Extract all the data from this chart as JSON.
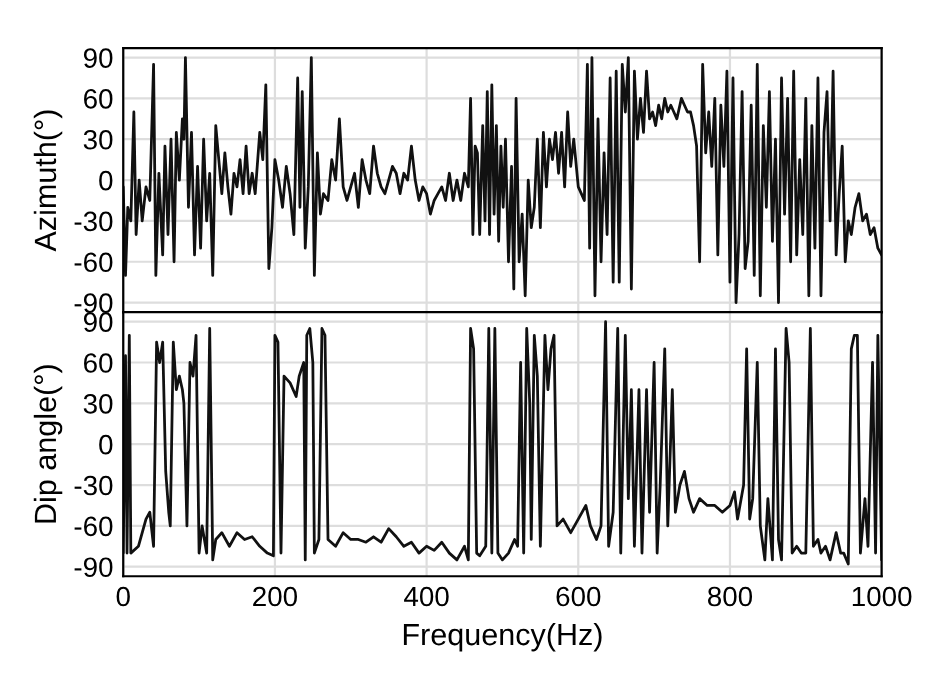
{
  "chart_data": [
    {
      "type": "line",
      "ylabel": "Azimuth(°)",
      "xlim": [
        0,
        1000
      ],
      "xticks": [
        0,
        200,
        400,
        600,
        800,
        1000
      ],
      "ylim": [
        -97,
        97
      ],
      "yticks": [
        {
          "value": 90,
          "label": "90"
        },
        {
          "value": 60,
          "label": "60"
        },
        {
          "value": 30,
          "label": "30"
        },
        {
          "value": 0,
          "label": "0"
        },
        {
          "value": -30,
          "label": "-30"
        },
        {
          "value": -60,
          "label": "-60"
        },
        {
          "value": -90,
          "label": "-90"
        }
      ],
      "grid": true,
      "tick_labels": "y",
      "series": [
        {
          "color": "#111111",
          "x": [
            0,
            3,
            6,
            10,
            14,
            17,
            21,
            25,
            30,
            35,
            40,
            43,
            47,
            52,
            55,
            59,
            63,
            67,
            70,
            74,
            78,
            80,
            82,
            86,
            90,
            94,
            98,
            102,
            106,
            110,
            114,
            118,
            122,
            126,
            130,
            134,
            138,
            142,
            146,
            150,
            154,
            158,
            162,
            166,
            170,
            174,
            180,
            184,
            188,
            192,
            196,
            200,
            205,
            210,
            215,
            220,
            225,
            230,
            233,
            236,
            240,
            244,
            248,
            252,
            256,
            260,
            264,
            270,
            275,
            280,
            285,
            290,
            295,
            300,
            305,
            310,
            315,
            320,
            325,
            330,
            335,
            340,
            345,
            350,
            355,
            360,
            365,
            370,
            375,
            380,
            385,
            390,
            395,
            400,
            405,
            410,
            415,
            420,
            425,
            430,
            435,
            440,
            445,
            450,
            455,
            458,
            461,
            464,
            467,
            470,
            474,
            477,
            480,
            483,
            486,
            489,
            492,
            495,
            498,
            501,
            504,
            508,
            512,
            515,
            518,
            522,
            526,
            530,
            534,
            538,
            542,
            546,
            550,
            554,
            558,
            562,
            566,
            570,
            574,
            578,
            582,
            586,
            590,
            594,
            600,
            604,
            608,
            612,
            615,
            618,
            622,
            626,
            630,
            634,
            638,
            642,
            646,
            650,
            654,
            658,
            662,
            666,
            670,
            674,
            678,
            682,
            686,
            690,
            694,
            698,
            702,
            706,
            710,
            714,
            718,
            722,
            726,
            730,
            736,
            740,
            744,
            748,
            752,
            756,
            760,
            764,
            768,
            772,
            776,
            780,
            784,
            788,
            792,
            796,
            800,
            804,
            808,
            812,
            816,
            820,
            824,
            828,
            832,
            836,
            840,
            844,
            848,
            852,
            856,
            860,
            864,
            868,
            872,
            876,
            880,
            884,
            888,
            892,
            896,
            900,
            904,
            908,
            912,
            916,
            920,
            924,
            928,
            932,
            936,
            940,
            944,
            948,
            952,
            956,
            960,
            965,
            970,
            975,
            980,
            985,
            990,
            995,
            1000
          ],
          "values": [
            -5,
            -70,
            -20,
            -30,
            50,
            -40,
            0,
            -30,
            -5,
            -15,
            85,
            -70,
            5,
            -55,
            25,
            -40,
            30,
            -60,
            35,
            0,
            45,
            30,
            90,
            -20,
            35,
            -55,
            10,
            -50,
            30,
            -30,
            5,
            -70,
            40,
            15,
            -10,
            20,
            -5,
            -25,
            5,
            -5,
            15,
            -10,
            25,
            -10,
            5,
            -10,
            35,
            15,
            70,
            -65,
            -35,
            15,
            0,
            -20,
            10,
            -10,
            -40,
            75,
            -20,
            65,
            -50,
            -5,
            90,
            -70,
            20,
            -25,
            -10,
            -15,
            15,
            0,
            45,
            -5,
            -15,
            -5,
            5,
            -20,
            15,
            0,
            -10,
            25,
            5,
            -5,
            -10,
            0,
            10,
            5,
            -10,
            5,
            0,
            25,
            0,
            -15,
            -5,
            -10,
            -25,
            -15,
            -10,
            -5,
            -15,
            5,
            -15,
            0,
            -15,
            5,
            -5,
            60,
            -40,
            25,
            20,
            -40,
            40,
            -30,
            65,
            -40,
            70,
            -25,
            40,
            -45,
            25,
            -20,
            30,
            -60,
            10,
            -80,
            60,
            -60,
            -25,
            -85,
            0,
            -35,
            -20,
            30,
            -35,
            35,
            -5,
            30,
            15,
            35,
            5,
            35,
            -5,
            50,
            10,
            30,
            -5,
            -10,
            -15,
            85,
            -50,
            90,
            -85,
            45,
            -60,
            20,
            -40,
            75,
            -75,
            80,
            -75,
            85,
            50,
            90,
            -80,
            80,
            30,
            60,
            35,
            80,
            45,
            50,
            40,
            55,
            45,
            60,
            50,
            55,
            50,
            45,
            60,
            55,
            50,
            50,
            40,
            25,
            -60,
            85,
            20,
            50,
            10,
            60,
            -55,
            55,
            10,
            80,
            -75,
            75,
            -90,
            -40,
            65,
            -65,
            -45,
            55,
            -70,
            85,
            -85,
            40,
            -20,
            65,
            -45,
            30,
            -90,
            75,
            -25,
            60,
            -60,
            80,
            -55,
            15,
            -40,
            60,
            -85,
            40,
            -50,
            75,
            -85,
            35,
            65,
            -30,
            80,
            -55,
            -10,
            25,
            -60,
            -30,
            -40,
            -20,
            -10,
            -30,
            -25,
            -40,
            -35,
            -50,
            -55
          ]
        }
      ]
    },
    {
      "type": "line",
      "ylabel": "Dip angle(°)",
      "xlabel": "Frequency(Hz)",
      "xlim": [
        0,
        1000
      ],
      "xticks": [
        0,
        200,
        400,
        600,
        800,
        1000
      ],
      "ylim": [
        -97,
        97
      ],
      "yticks": [
        {
          "value": 90,
          "label": "90"
        },
        {
          "value": 60,
          "label": "60"
        },
        {
          "value": 30,
          "label": "30"
        },
        {
          "value": 0,
          "label": "0"
        },
        {
          "value": -30,
          "label": "-30"
        },
        {
          "value": -60,
          "label": "-60"
        },
        {
          "value": -90,
          "label": "-90"
        }
      ],
      "grid": true,
      "series": [
        {
          "color": "#111111",
          "x": [
            0,
            3,
            5,
            8,
            10,
            20,
            30,
            35,
            40,
            44,
            48,
            52,
            56,
            60,
            62,
            66,
            70,
            74,
            78,
            80,
            84,
            88,
            92,
            96,
            100,
            104,
            110,
            114,
            118,
            122,
            130,
            140,
            150,
            160,
            170,
            180,
            190,
            198,
            200,
            204,
            208,
            212,
            220,
            228,
            232,
            238,
            240,
            242,
            246,
            250,
            252,
            258,
            262,
            266,
            270,
            280,
            290,
            300,
            310,
            320,
            330,
            340,
            350,
            360,
            370,
            380,
            390,
            400,
            410,
            420,
            430,
            440,
            450,
            455,
            458,
            462,
            466,
            470,
            478,
            482,
            486,
            490,
            494,
            500,
            508,
            516,
            520,
            524,
            528,
            532,
            536,
            538,
            542,
            546,
            550,
            556,
            560,
            564,
            568,
            572,
            580,
            590,
            600,
            610,
            616,
            624,
            630,
            636,
            640,
            646,
            652,
            656,
            662,
            666,
            670,
            674,
            680,
            684,
            690,
            694,
            700,
            704,
            708,
            714,
            718,
            724,
            728,
            734,
            740,
            746,
            752,
            760,
            770,
            780,
            790,
            800,
            806,
            810,
            818,
            822,
            826,
            830,
            836,
            840,
            846,
            850,
            856,
            860,
            864,
            868,
            874,
            878,
            882,
            888,
            894,
            900,
            906,
            910,
            916,
            920,
            926,
            932,
            940,
            946,
            950,
            956,
            960,
            964,
            968,
            972,
            978,
            982,
            988,
            992,
            995,
            1000
          ],
          "values": [
            -80,
            65,
            -80,
            80,
            -80,
            -75,
            -55,
            -50,
            -75,
            75,
            60,
            75,
            -20,
            -50,
            -60,
            75,
            40,
            50,
            40,
            30,
            -60,
            60,
            50,
            80,
            -80,
            -60,
            -80,
            85,
            -85,
            -70,
            -65,
            -75,
            -65,
            -70,
            -68,
            -75,
            -80,
            -82,
            80,
            75,
            -80,
            50,
            45,
            35,
            50,
            60,
            -85,
            80,
            85,
            60,
            -80,
            -70,
            85,
            80,
            -70,
            -75,
            -65,
            -70,
            -70,
            -72,
            -68,
            -72,
            -62,
            -68,
            -75,
            -72,
            -80,
            -75,
            -78,
            -72,
            -80,
            -85,
            -75,
            -85,
            85,
            70,
            -80,
            -82,
            -75,
            85,
            -80,
            85,
            -80,
            -85,
            -80,
            -70,
            -75,
            60,
            -80,
            85,
            30,
            -70,
            80,
            50,
            -75,
            80,
            40,
            70,
            80,
            -60,
            -55,
            -65,
            -55,
            -45,
            -60,
            -70,
            -60,
            90,
            -75,
            -50,
            85,
            -80,
            80,
            -40,
            40,
            -75,
            40,
            -80,
            40,
            -50,
            60,
            -80,
            -30,
            70,
            -60,
            40,
            -50,
            -30,
            -20,
            -40,
            -50,
            -40,
            -45,
            -45,
            -50,
            -45,
            -35,
            -55,
            -30,
            70,
            -55,
            -40,
            60,
            -60,
            -85,
            -40,
            -85,
            70,
            -70,
            -85,
            85,
            60,
            -80,
            -75,
            -80,
            -80,
            85,
            -75,
            -70,
            -80,
            -75,
            -85,
            -65,
            -80,
            -80,
            -88,
            70,
            80,
            80,
            -80,
            -40,
            -75,
            60,
            -80,
            80,
            -85
          ]
        }
      ]
    }
  ]
}
